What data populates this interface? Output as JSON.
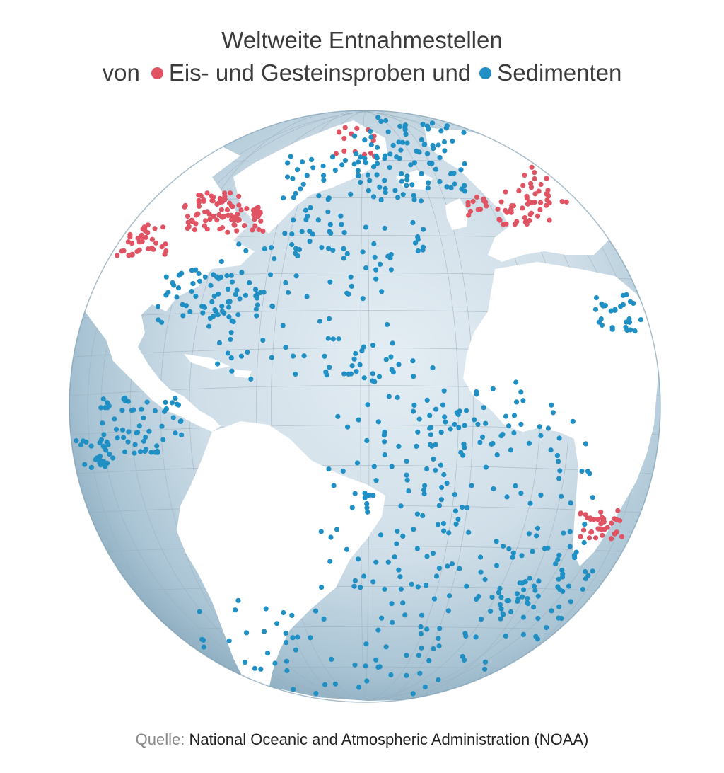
{
  "title": {
    "line1": "Weltweite Entnahmestellen",
    "von": "von",
    "und": "und"
  },
  "legend": [
    {
      "label": "Eis- und Gesteinsproben",
      "color": "#e05363",
      "icon": "red-dot-icon"
    },
    {
      "label": "Sedimenten",
      "color": "#1f8fc4",
      "icon": "blue-dot-icon"
    }
  ],
  "source": {
    "prefix": "Quelle:",
    "text": "National Oceanic and Atmospheric Administration (NOAA)"
  },
  "colors": {
    "ocean_light": "#dde8ef",
    "ocean_dark": "#8fb0c3",
    "land": "#ffffff",
    "grid": "#9aaeba"
  },
  "map_data": {
    "projection": "orthographic",
    "center": "Atlantic Ocean"
  }
}
